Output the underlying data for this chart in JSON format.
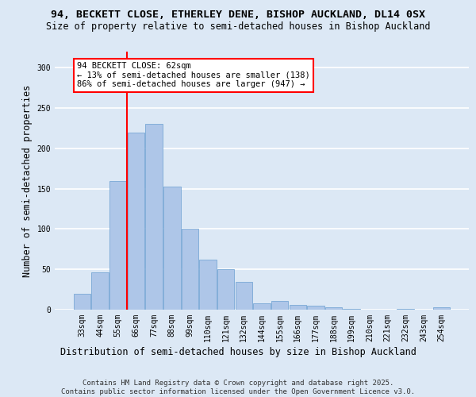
{
  "title_line1": "94, BECKETT CLOSE, ETHERLEY DENE, BISHOP AUCKLAND, DL14 0SX",
  "title_line2": "Size of property relative to semi-detached houses in Bishop Auckland",
  "xlabel": "Distribution of semi-detached houses by size in Bishop Auckland",
  "ylabel": "Number of semi-detached properties",
  "footer_line1": "Contains HM Land Registry data © Crown copyright and database right 2025.",
  "footer_line2": "Contains public sector information licensed under the Open Government Licence v3.0.",
  "annotation_line1": "94 BECKETT CLOSE: 62sqm",
  "annotation_line2": "← 13% of semi-detached houses are smaller (138)",
  "annotation_line3": "86% of semi-detached houses are larger (947) →",
  "bin_labels": [
    "33sqm",
    "44sqm",
    "55sqm",
    "66sqm",
    "77sqm",
    "88sqm",
    "99sqm",
    "110sqm",
    "121sqm",
    "132sqm",
    "144sqm",
    "155sqm",
    "166sqm",
    "177sqm",
    "188sqm",
    "199sqm",
    "210sqm",
    "221sqm",
    "232sqm",
    "243sqm",
    "254sqm"
  ],
  "bar_values": [
    20,
    46,
    160,
    220,
    230,
    153,
    100,
    62,
    50,
    34,
    8,
    11,
    6,
    5,
    3,
    1,
    0,
    0,
    1,
    0,
    3
  ],
  "bar_color": "#aec6e8",
  "bar_edge_color": "#6a9fd0",
  "vline_color": "red",
  "ylim": [
    0,
    320
  ],
  "yticks": [
    0,
    50,
    100,
    150,
    200,
    250,
    300
  ],
  "background_color": "#dce8f5",
  "grid_color": "white",
  "title_fontsize": 9.5,
  "subtitle_fontsize": 8.5,
  "tick_fontsize": 7,
  "label_fontsize": 8.5,
  "footer_fontsize": 6.5,
  "ann_fontsize": 7.5
}
